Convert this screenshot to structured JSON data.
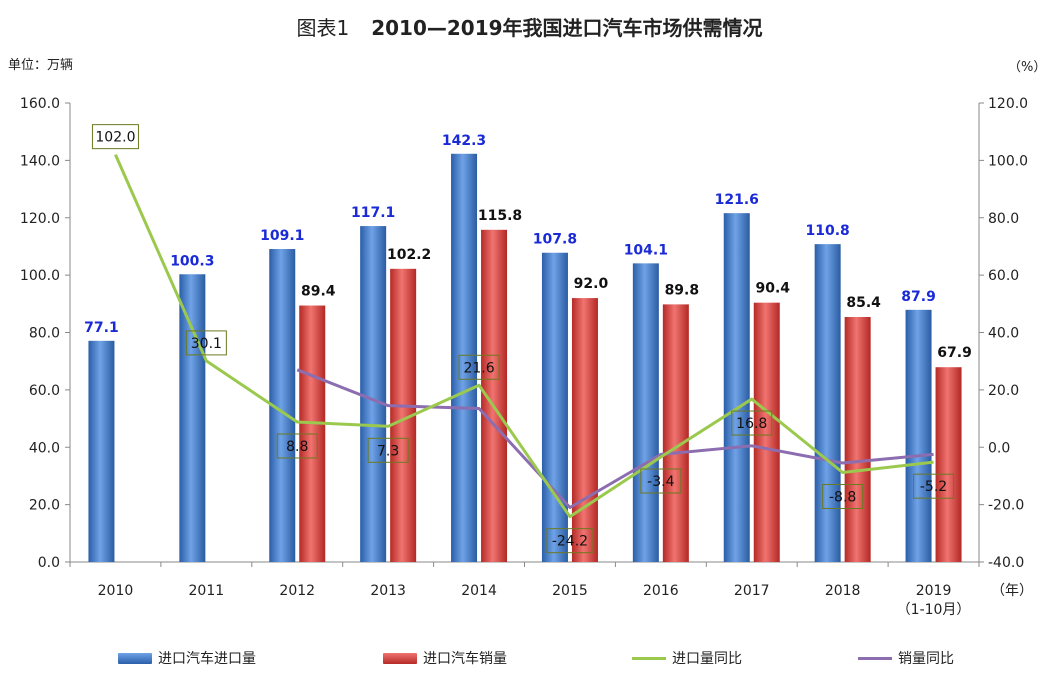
{
  "title": {
    "prefix": "图表1",
    "main": "2010—2019年我国进口汽车市场供需情况"
  },
  "unit_left": "单位：万辆",
  "unit_right": "（%）",
  "x_unit": "（年）",
  "x_sublabel": "（1-10月）",
  "colors": {
    "import": "#3a74c4",
    "sales": "#d9403b",
    "import_yoy": "#9bc94e",
    "sales_yoy": "#8c6db0",
    "blue_label": "#1a2ad6"
  },
  "chart_data": {
    "type": "bar",
    "categories": [
      "2010",
      "2011",
      "2012",
      "2013",
      "2014",
      "2015",
      "2016",
      "2017",
      "2018",
      "2019"
    ],
    "left_ticks": [
      "0.0",
      "20.0",
      "40.0",
      "60.0",
      "80.0",
      "100.0",
      "120.0",
      "140.0",
      "160.0"
    ],
    "right_ticks": [
      "-40.0",
      "-20.0",
      "0.0",
      "20.0",
      "40.0",
      "60.0",
      "80.0",
      "100.0",
      "120.0"
    ],
    "ylim_left": [
      0,
      160
    ],
    "ylim_right": [
      -40,
      120
    ],
    "series": [
      {
        "name": "进口汽车进口量",
        "axis": "left",
        "kind": "bar",
        "values": [
          77.1,
          100.3,
          109.1,
          117.1,
          142.3,
          107.8,
          104.1,
          121.6,
          110.8,
          87.9
        ],
        "labels": [
          "77.1",
          "100.3",
          "109.1",
          "117.1",
          "142.3",
          "107.8",
          "104.1",
          "121.6",
          "110.8",
          "87.9"
        ]
      },
      {
        "name": "进口汽车销量",
        "axis": "left",
        "kind": "bar",
        "values": [
          null,
          null,
          89.4,
          102.2,
          115.8,
          92.0,
          89.8,
          90.4,
          85.4,
          67.9
        ],
        "labels": [
          "",
          "",
          "89.4",
          "102.2",
          "115.8",
          "92.0",
          "89.8",
          "90.4",
          "85.4",
          "67.9"
        ]
      },
      {
        "name": "进口量同比",
        "axis": "right",
        "kind": "line",
        "values": [
          102.0,
          30.1,
          8.8,
          7.3,
          21.6,
          -24.2,
          -3.4,
          16.8,
          -8.8,
          -5.2
        ],
        "labels": [
          "102.0",
          "30.1",
          "8.8",
          "7.3",
          "21.6",
          "-24.2",
          "-3.4",
          "16.8",
          "-8.8",
          "-5.2"
        ]
      },
      {
        "name": "销量同比",
        "axis": "right",
        "kind": "line",
        "values": [
          null,
          null,
          27.0,
          14.5,
          13.5,
          -21.0,
          -2.5,
          0.5,
          -5.5,
          -2.5
        ]
      }
    ]
  }
}
